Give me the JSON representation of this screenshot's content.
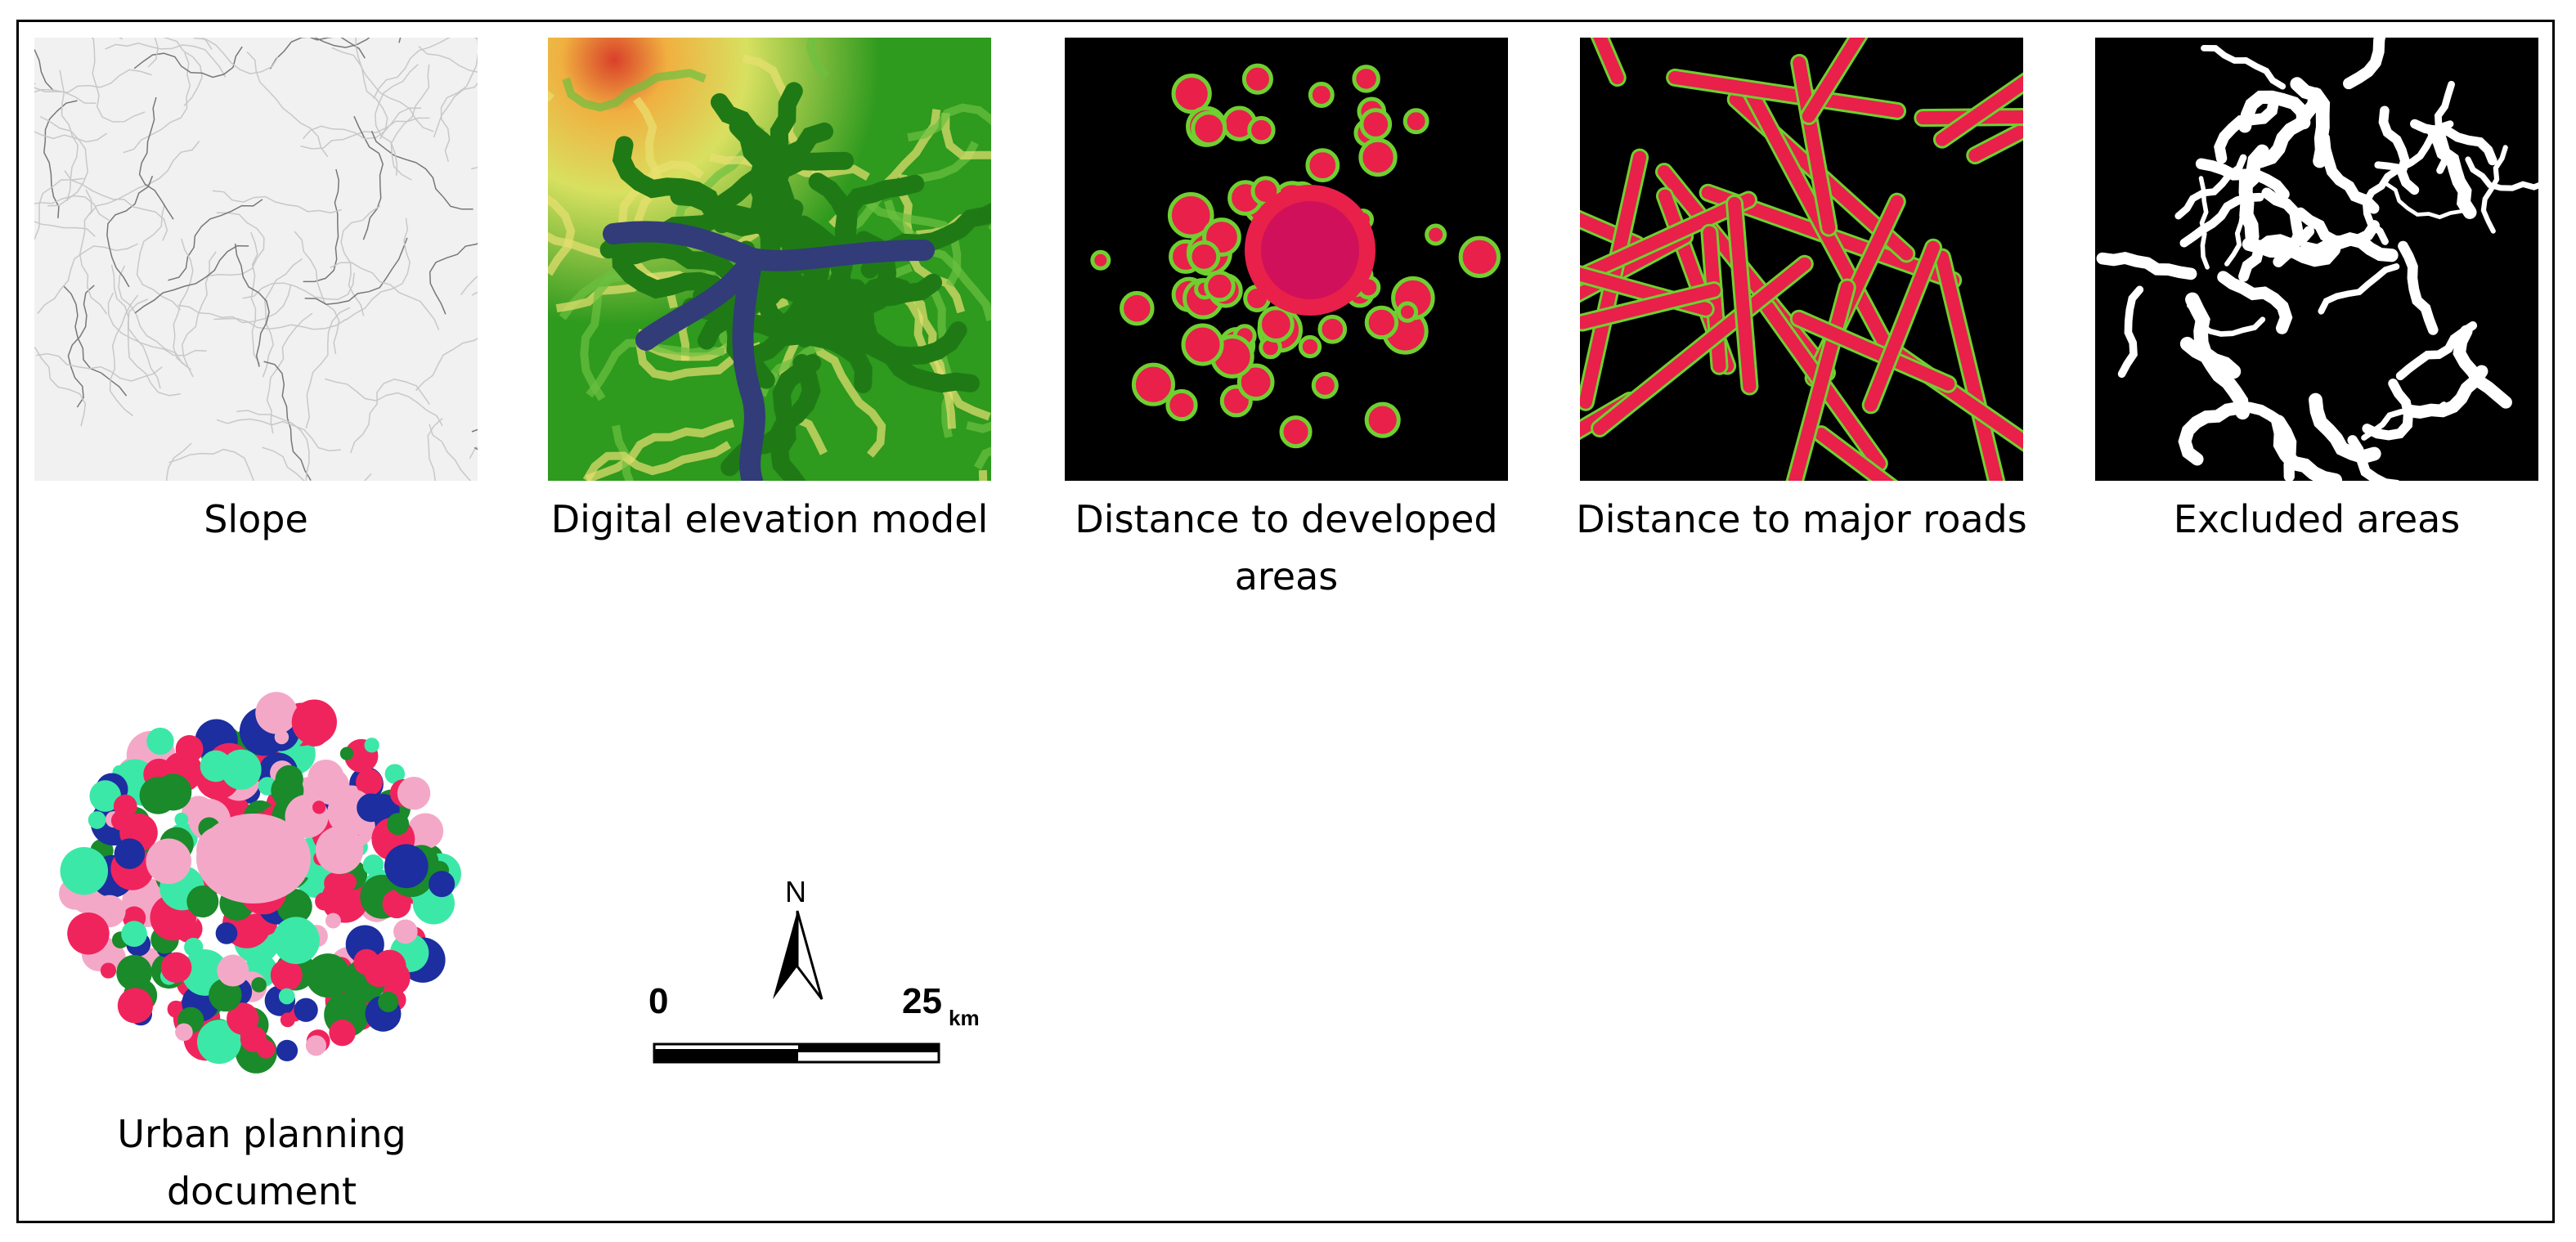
{
  "panels": [
    {
      "caption": "Slope"
    },
    {
      "caption": "Digital elevation model"
    },
    {
      "caption": "Distance to developed areas"
    },
    {
      "caption": "Distance to major roads"
    },
    {
      "caption": "Excluded areas"
    },
    {
      "caption": "Urban planning document"
    }
  ],
  "north_arrow": {
    "label": "N"
  },
  "scale_bar": {
    "start": "0",
    "end": "25",
    "unit": "km"
  }
}
